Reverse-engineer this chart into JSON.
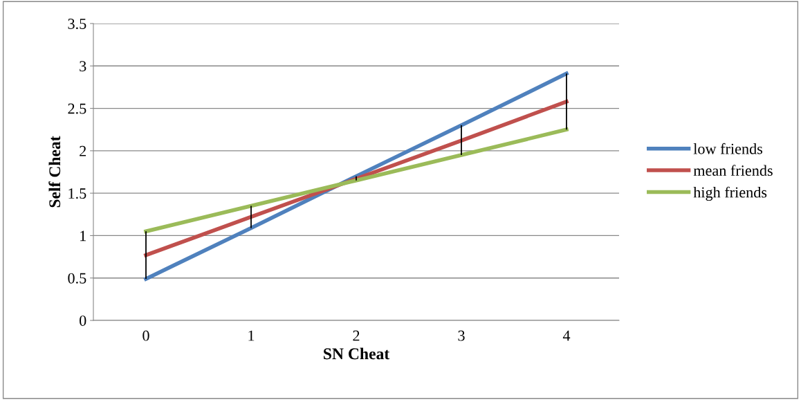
{
  "chart_data": {
    "type": "line",
    "xlabel": "SN Cheat",
    "ylabel": "Self Cheat",
    "categories": [
      "0",
      "1",
      "2",
      "3",
      "4"
    ],
    "series": [
      {
        "name": "low friends",
        "color": "#4f81bd",
        "values": [
          0.49,
          1.09,
          1.7,
          2.3,
          2.91
        ]
      },
      {
        "name": "mean friends",
        "color": "#c0504d",
        "values": [
          0.77,
          1.22,
          1.67,
          2.12,
          2.58
        ],
        "errors": [
          [
            0.49,
            1.05
          ],
          [
            1.09,
            1.35
          ],
          [
            1.65,
            1.7
          ],
          [
            1.95,
            2.3
          ],
          [
            2.25,
            2.91
          ]
        ]
      },
      {
        "name": "high friends",
        "color": "#9bbb59",
        "values": [
          1.05,
          1.35,
          1.65,
          1.95,
          2.25
        ]
      }
    ],
    "ylim": [
      0,
      3.5
    ],
    "yticks": [
      0,
      0.5,
      1,
      1.5,
      2,
      2.5,
      3,
      3.5
    ],
    "grid": "y",
    "legend": "right",
    "marker": "none",
    "line_style": "solid"
  }
}
